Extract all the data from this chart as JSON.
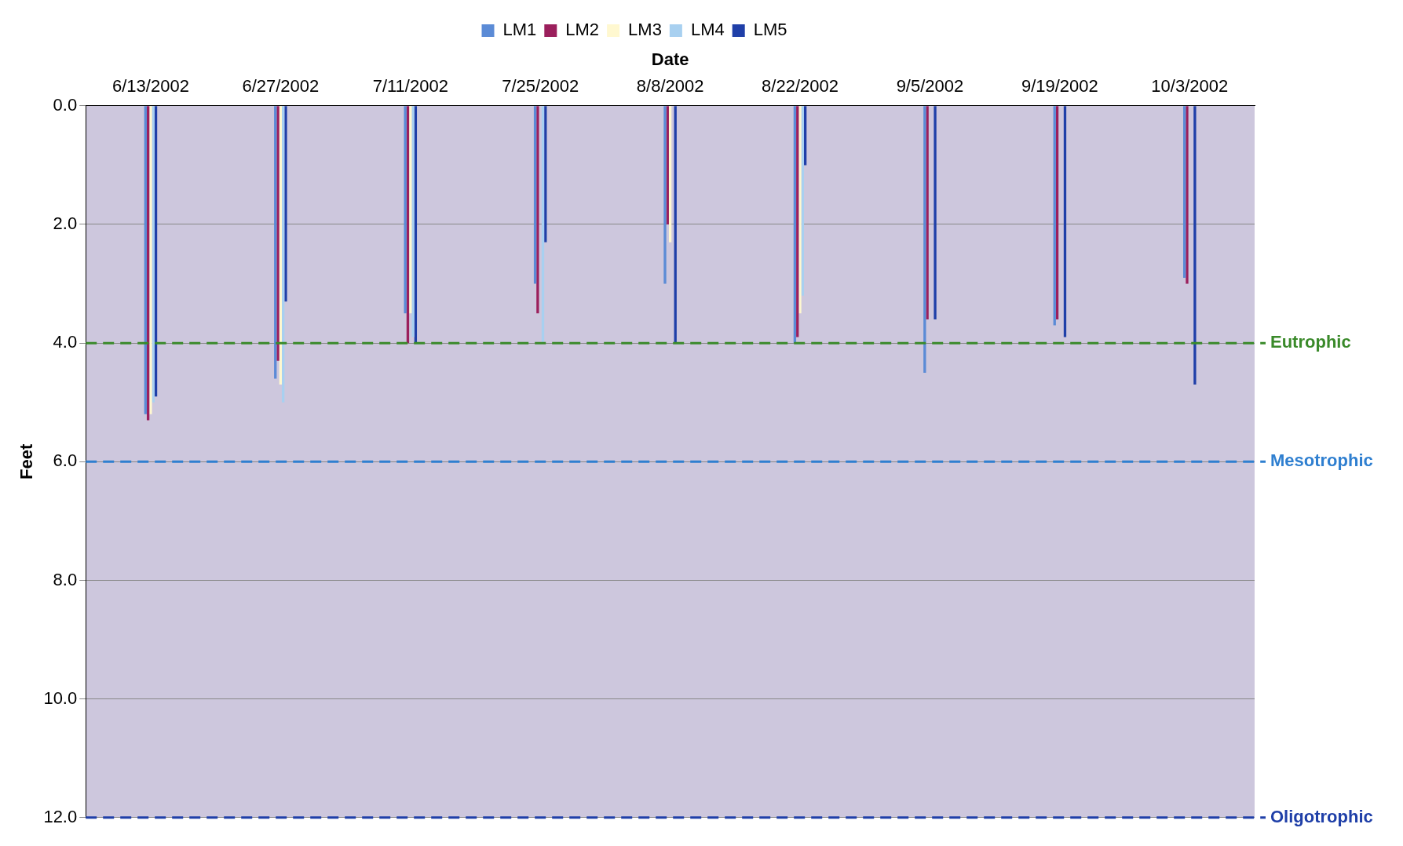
{
  "chart_data": {
    "type": "bar",
    "xlabel": "Date",
    "ylabel": "Feet",
    "categories": [
      "6/13/2002",
      "6/27/2002",
      "7/11/2002",
      "7/25/2002",
      "8/8/2002",
      "8/22/2002",
      "9/5/2002",
      "9/19/2002",
      "10/3/2002"
    ],
    "series": [
      {
        "name": "LM1",
        "color": "#5b8bd6",
        "values": [
          5.2,
          4.6,
          3.5,
          3.0,
          3.0,
          4.0,
          4.5,
          3.7,
          2.9
        ]
      },
      {
        "name": "LM2",
        "color": "#9b1f5c",
        "values": [
          5.3,
          4.3,
          4.0,
          3.5,
          2.0,
          3.9,
          3.6,
          3.6,
          3.0
        ]
      },
      {
        "name": "LM3",
        "color": "#fff8d0",
        "values": [
          5.2,
          4.7,
          3.5,
          null,
          2.3,
          3.5,
          null,
          null,
          null
        ]
      },
      {
        "name": "LM4",
        "color": "#a8d0f0",
        "values": [
          5.0,
          5.0,
          3.9,
          4.0,
          null,
          3.2,
          null,
          null,
          null
        ]
      },
      {
        "name": "LM5",
        "color": "#1f3fa8",
        "values": [
          4.9,
          3.3,
          4.0,
          2.3,
          4.0,
          1.0,
          3.6,
          3.9,
          4.7
        ]
      }
    ],
    "ylim": [
      12,
      0
    ],
    "yticks": [
      {
        "value": 0,
        "label": "0.0"
      },
      {
        "value": 2,
        "label": "2.0"
      },
      {
        "value": 4,
        "label": "4.0"
      },
      {
        "value": 6,
        "label": "6.0"
      },
      {
        "value": 8,
        "label": "8.0"
      },
      {
        "value": 10,
        "label": "10.0"
      },
      {
        "value": 12,
        "label": "12.0"
      }
    ],
    "ref_lines": [
      {
        "axis": "y",
        "value": 4,
        "label": "Eutrophic",
        "color": "#3a8a2a",
        "line_style": "dashed"
      },
      {
        "axis": "y",
        "value": 6,
        "label": "Mesotrophic",
        "color": "#2f7fd0",
        "line_style": "dashed"
      },
      {
        "axis": "y",
        "value": 12,
        "label": "Oligotrophic",
        "color": "#1f3fa8",
        "line_style": "dashed"
      }
    ],
    "grid": "y",
    "legend": "top"
  }
}
